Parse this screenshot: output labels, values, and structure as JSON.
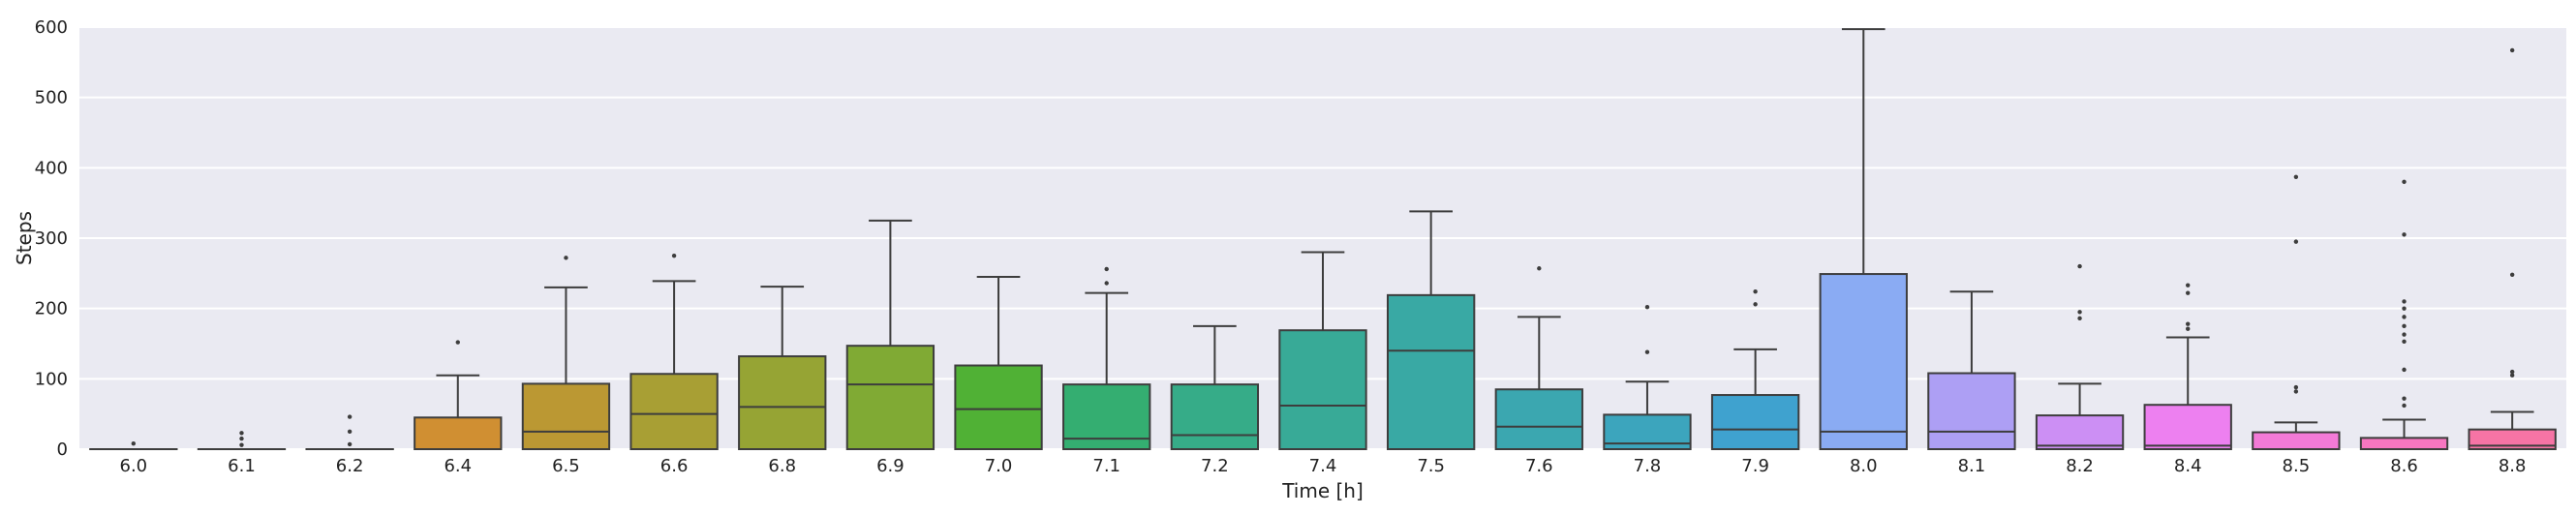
{
  "chart_data": {
    "type": "box",
    "title": "",
    "xlabel": "Time [h]",
    "ylabel": "Steps",
    "ylim": [
      0,
      600
    ],
    "yticks": [
      0,
      100,
      200,
      300,
      400,
      500,
      600
    ],
    "grid": true,
    "legend": "none",
    "colors": {
      "background": "#eaeaf2",
      "grid": "#ffffff",
      "line": "#3d3d3d"
    },
    "categories": [
      "6.0",
      "6.1",
      "6.2",
      "6.4",
      "6.5",
      "6.6",
      "6.8",
      "6.9",
      "7.0",
      "7.1",
      "7.2",
      "7.4",
      "7.5",
      "7.6",
      "7.8",
      "7.9",
      "8.0",
      "8.1",
      "8.2",
      "8.4",
      "8.5",
      "8.6",
      "8.8"
    ],
    "boxes": [
      {
        "x": "6.0",
        "color": "#f77189",
        "min": 0,
        "q1": 0,
        "median": 0,
        "q3": 0,
        "max": 0,
        "outliers": [
          8
        ]
      },
      {
        "x": "6.1",
        "color": "#f3795d",
        "min": 0,
        "q1": 0,
        "median": 0,
        "q3": 0,
        "max": 0,
        "outliers": [
          6,
          15,
          23
        ]
      },
      {
        "x": "6.2",
        "color": "#e8853a",
        "min": 0,
        "q1": 0,
        "median": 0,
        "q3": 0,
        "max": 0,
        "outliers": [
          7,
          25,
          46
        ]
      },
      {
        "x": "6.4",
        "color": "#d08f32",
        "min": 0,
        "q1": 0,
        "median": 0,
        "q3": 45,
        "max": 105,
        "outliers": [
          152
        ]
      },
      {
        "x": "6.5",
        "color": "#bb9833",
        "min": 0,
        "q1": 0,
        "median": 25,
        "q3": 93,
        "max": 230,
        "outliers": [
          272
        ]
      },
      {
        "x": "6.6",
        "color": "#a89f34",
        "min": 0,
        "q1": 0,
        "median": 50,
        "q3": 107,
        "max": 239,
        "outliers": [
          275
        ]
      },
      {
        "x": "6.8",
        "color": "#96a434",
        "min": 0,
        "q1": 0,
        "median": 60,
        "q3": 132,
        "max": 231,
        "outliers": []
      },
      {
        "x": "6.9",
        "color": "#80aa34",
        "min": 0,
        "q1": 0,
        "median": 92,
        "q3": 147,
        "max": 325,
        "outliers": []
      },
      {
        "x": "7.0",
        "color": "#50b135",
        "min": 0,
        "q1": 0,
        "median": 57,
        "q3": 119,
        "max": 245,
        "outliers": []
      },
      {
        "x": "7.1",
        "color": "#34ae71",
        "min": 0,
        "q1": 0,
        "median": 15,
        "q3": 92,
        "max": 222,
        "outliers": [
          236,
          256
        ]
      },
      {
        "x": "7.2",
        "color": "#36ac88",
        "min": 0,
        "q1": 0,
        "median": 20,
        "q3": 92,
        "max": 175,
        "outliers": []
      },
      {
        "x": "7.4",
        "color": "#38aa97",
        "min": 0,
        "q1": 0,
        "median": 62,
        "q3": 169,
        "max": 280,
        "outliers": []
      },
      {
        "x": "7.5",
        "color": "#39a9a4",
        "min": 0,
        "q1": 0,
        "median": 140,
        "q3": 219,
        "max": 338,
        "outliers": []
      },
      {
        "x": "7.6",
        "color": "#3ba7b0",
        "min": 0,
        "q1": 0,
        "median": 32,
        "q3": 85,
        "max": 188,
        "outliers": [
          257
        ]
      },
      {
        "x": "7.8",
        "color": "#3ca5bd",
        "min": 0,
        "q1": 0,
        "median": 8,
        "q3": 49,
        "max": 96,
        "outliers": [
          138,
          202
        ]
      },
      {
        "x": "7.9",
        "color": "#3fa2cf",
        "min": 0,
        "q1": 0,
        "median": 28,
        "q3": 77,
        "max": 142,
        "outliers": [
          206,
          224
        ]
      },
      {
        "x": "8.0",
        "color": "#8aabf3",
        "min": 0,
        "q1": 0,
        "median": 25,
        "q3": 249,
        "max": 597,
        "outliers": []
      },
      {
        "x": "8.1",
        "color": "#ad9ff4",
        "min": 0,
        "q1": 0,
        "median": 25,
        "q3": 108,
        "max": 224,
        "outliers": []
      },
      {
        "x": "8.2",
        "color": "#cc8ff4",
        "min": 0,
        "q1": 0,
        "median": 5,
        "q3": 48,
        "max": 93,
        "outliers": [
          186,
          195,
          260
        ]
      },
      {
        "x": "8.4",
        "color": "#ed80f0",
        "min": 0,
        "q1": 0,
        "median": 5,
        "q3": 63,
        "max": 159,
        "outliers": [
          171,
          178,
          222,
          233
        ]
      },
      {
        "x": "8.5",
        "color": "#f37ad7",
        "min": 0,
        "q1": 0,
        "median": 0,
        "q3": 24,
        "max": 38,
        "outliers": [
          82,
          88,
          295,
          387
        ]
      },
      {
        "x": "8.6",
        "color": "#f676c0",
        "min": 0,
        "q1": 0,
        "median": 0,
        "q3": 16,
        "max": 42,
        "outliers": [
          62,
          72,
          113,
          153,
          163,
          175,
          188,
          200,
          210,
          305,
          380
        ]
      },
      {
        "x": "8.8",
        "color": "#f674a5",
        "min": 0,
        "q1": 0,
        "median": 5,
        "q3": 28,
        "max": 53,
        "outliers": [
          105,
          110,
          248,
          567
        ]
      }
    ]
  }
}
